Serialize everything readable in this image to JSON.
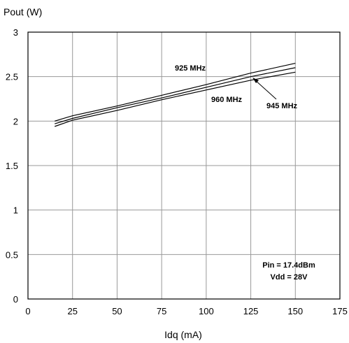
{
  "chart_data": {
    "type": "line",
    "title": "",
    "xlabel": "Idq (mA)",
    "ylabel": "Pout (W)",
    "xlim": [
      0,
      175
    ],
    "ylim": [
      0,
      3
    ],
    "xticks": [
      "0",
      "25",
      "50",
      "75",
      "100",
      "125",
      "150",
      "175"
    ],
    "yticks": [
      "0",
      "0.5",
      "1",
      "1.5",
      "2",
      "2.5",
      "3"
    ],
    "grid": true,
    "series": [
      {
        "name": "925 MHz",
        "x": [
          15,
          25,
          50,
          75,
          100,
          125,
          150
        ],
        "y": [
          2.0,
          2.06,
          2.17,
          2.29,
          2.41,
          2.54,
          2.65
        ]
      },
      {
        "name": "945 MHz",
        "x": [
          15,
          25,
          50,
          75,
          100,
          125,
          150
        ],
        "y": [
          1.97,
          2.03,
          2.15,
          2.26,
          2.38,
          2.5,
          2.6
        ]
      },
      {
        "name": "960 MHz",
        "x": [
          15,
          25,
          50,
          75,
          100,
          125,
          150
        ],
        "y": [
          1.94,
          2.01,
          2.12,
          2.24,
          2.35,
          2.46,
          2.55
        ]
      }
    ],
    "annotations": {
      "conditions_line1": "Pin = 17.4dBm",
      "conditions_line2": "Vdd = 28V"
    }
  }
}
